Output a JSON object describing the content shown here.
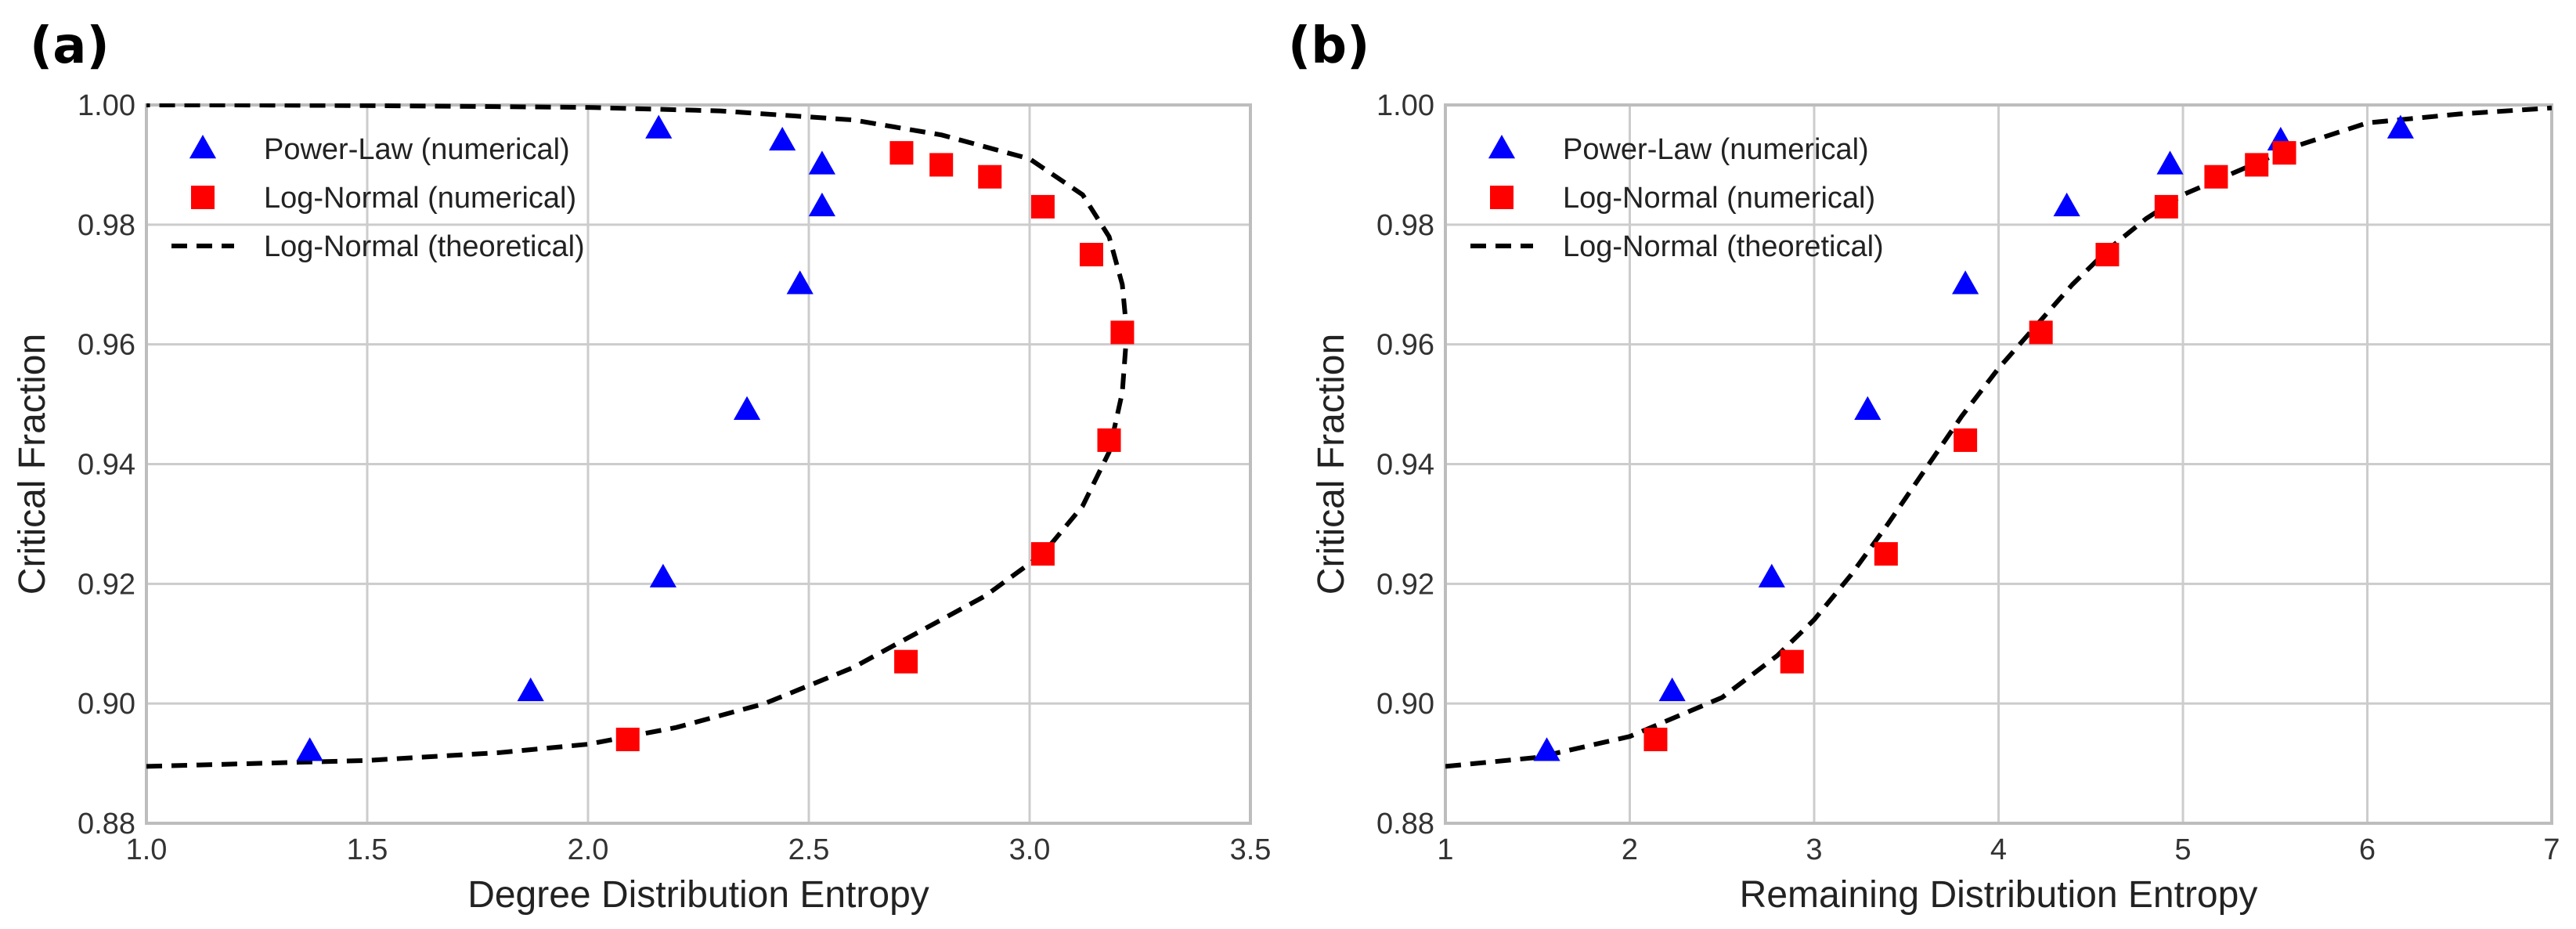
{
  "chart_data": [
    {
      "panel_label": "(a)",
      "type": "scatter",
      "title": "",
      "xlabel": "Degree Distribution Entropy",
      "ylabel": "Critical Fraction",
      "xlim": [
        1.0,
        3.5
      ],
      "ylim": [
        0.88,
        1.0
      ],
      "xticks": [
        1.0,
        1.5,
        2.0,
        2.5,
        3.0,
        3.5
      ],
      "xtick_labels": [
        "1.0",
        "1.5",
        "2.0",
        "2.5",
        "3.0",
        "3.5"
      ],
      "yticks": [
        0.88,
        0.9,
        0.92,
        0.94,
        0.96,
        0.98,
        1.0
      ],
      "ytick_labels": [
        "0.88",
        "0.90",
        "0.92",
        "0.94",
        "0.96",
        "0.98",
        "1.00"
      ],
      "grid": true,
      "legend_position": "top-left",
      "series": [
        {
          "name": "Power-Law (numerical)",
          "marker": "triangle",
          "color": "#0000ff",
          "x": [
            1.37,
            1.87,
            2.17,
            2.36,
            2.48,
            2.53,
            2.53,
            2.44,
            2.16
          ],
          "y": [
            0.892,
            0.902,
            0.921,
            0.949,
            0.97,
            0.983,
            0.99,
            0.994,
            0.996
          ]
        },
        {
          "name": "Log-Normal (numerical)",
          "marker": "square",
          "color": "#ff0000",
          "x": [
            2.09,
            2.72,
            3.03,
            3.18,
            3.21,
            3.14,
            3.03,
            2.91,
            2.8,
            2.71
          ],
          "y": [
            0.894,
            0.907,
            0.925,
            0.944,
            0.962,
            0.975,
            0.983,
            0.988,
            0.99,
            0.992
          ]
        },
        {
          "name": "Log-Normal (theoretical)",
          "marker": "dashed-line",
          "color": "#000000",
          "x": [
            1.0,
            1.5,
            1.8,
            2.0,
            2.2,
            2.4,
            2.6,
            2.75,
            2.9,
            3.03,
            3.12,
            3.18,
            3.21,
            3.22,
            3.21,
            3.18,
            3.12,
            3.0,
            2.8,
            2.6,
            2.3,
            2.0,
            1.5,
            1.2,
            1.0
          ],
          "y": [
            0.8895,
            0.8905,
            0.8918,
            0.8932,
            0.896,
            0.9,
            0.906,
            0.912,
            0.918,
            0.925,
            0.933,
            0.942,
            0.952,
            0.962,
            0.97,
            0.978,
            0.985,
            0.991,
            0.995,
            0.9975,
            0.999,
            0.9996,
            0.9999,
            1.0,
            1.0
          ]
        }
      ]
    },
    {
      "panel_label": "(b)",
      "type": "scatter",
      "title": "",
      "xlabel": "Remaining Distribution Entropy",
      "ylabel": "Critical Fraction",
      "xlim": [
        1,
        7
      ],
      "ylim": [
        0.88,
        1.0
      ],
      "xticks": [
        1,
        2,
        3,
        4,
        5,
        6,
        7
      ],
      "xtick_labels": [
        "1",
        "2",
        "3",
        "4",
        "5",
        "6",
        "7"
      ],
      "yticks": [
        0.88,
        0.9,
        0.92,
        0.94,
        0.96,
        0.98,
        1.0
      ],
      "ytick_labels": [
        "0.88",
        "0.90",
        "0.92",
        "0.94",
        "0.96",
        "0.98",
        "1.00"
      ],
      "grid": true,
      "legend_position": "top-left",
      "series": [
        {
          "name": "Power-Law (numerical)",
          "marker": "triangle",
          "color": "#0000ff",
          "x": [
            1.55,
            2.23,
            2.77,
            3.29,
            3.82,
            4.37,
            4.93,
            5.53,
            6.18
          ],
          "y": [
            0.892,
            0.902,
            0.921,
            0.949,
            0.97,
            0.983,
            0.99,
            0.994,
            0.996
          ]
        },
        {
          "name": "Log-Normal (numerical)",
          "marker": "square",
          "color": "#ff0000",
          "x": [
            2.14,
            2.88,
            3.39,
            3.82,
            4.23,
            4.59,
            4.91,
            5.18,
            5.4,
            5.55
          ],
          "y": [
            0.894,
            0.907,
            0.925,
            0.944,
            0.962,
            0.975,
            0.983,
            0.988,
            0.99,
            0.992
          ]
        },
        {
          "name": "Log-Normal (theoretical)",
          "marker": "dashed-line",
          "color": "#000000",
          "x": [
            1.0,
            1.5,
            2.0,
            2.5,
            2.8,
            3.0,
            3.2,
            3.4,
            3.6,
            3.8,
            4.0,
            4.2,
            4.4,
            4.6,
            4.8,
            5.0,
            5.3,
            5.6,
            6.0,
            6.5,
            7.0
          ],
          "y": [
            0.8895,
            0.891,
            0.8945,
            0.901,
            0.908,
            0.914,
            0.9215,
            0.93,
            0.939,
            0.948,
            0.956,
            0.963,
            0.97,
            0.976,
            0.981,
            0.985,
            0.989,
            0.993,
            0.997,
            0.9985,
            0.9995
          ]
        }
      ]
    }
  ]
}
